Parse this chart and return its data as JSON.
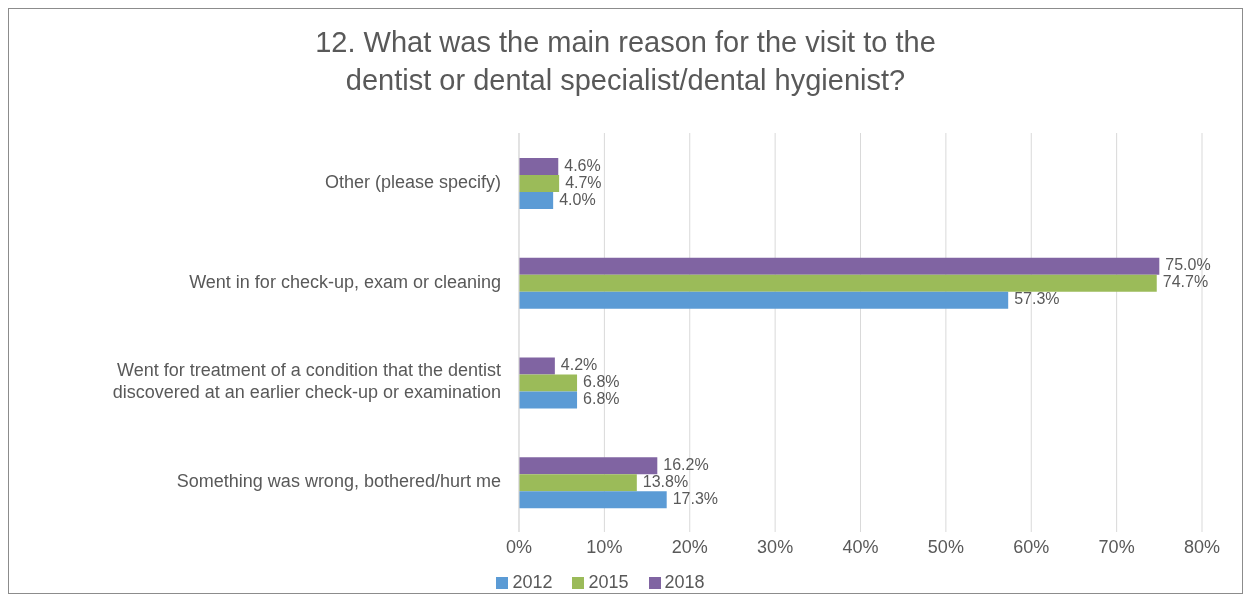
{
  "chart_data": {
    "type": "bar",
    "orientation": "horizontal",
    "title": "12. What was the main reason for the visit to the dentist or dental specialist/dental hygienist?",
    "categories": [
      "Other (please specify)",
      "Went in for check-up, exam or cleaning",
      "Went for treatment of a condition that the dentist discovered at an earlier check-up or examination",
      "Something was wrong, bothered/hurt me"
    ],
    "series": [
      {
        "name": "2018",
        "color": "#8064a2",
        "values": [
          4.6,
          75.0,
          4.2,
          16.2
        ],
        "value_labels": [
          "4.6%",
          "75.0%",
          "4.2%",
          "16.2%"
        ]
      },
      {
        "name": "2015",
        "color": "#9bbb59",
        "values": [
          4.7,
          74.7,
          6.8,
          13.8
        ],
        "value_labels": [
          "4.7%",
          "74.7%",
          "6.8%",
          "13.8%"
        ]
      },
      {
        "name": "2012",
        "color": "#5b9bd5",
        "values": [
          4.0,
          57.3,
          6.8,
          17.3
        ],
        "value_labels": [
          "4.0%",
          "57.3%",
          "6.8%",
          "17.3%"
        ]
      }
    ],
    "xlim": [
      0,
      80
    ],
    "xticks": [
      {
        "value": 0,
        "label": "0%"
      },
      {
        "value": 10,
        "label": "10%"
      },
      {
        "value": 20,
        "label": "20%"
      },
      {
        "value": 30,
        "label": "30%"
      },
      {
        "value": 40,
        "label": "40%"
      },
      {
        "value": 50,
        "label": "50%"
      },
      {
        "value": 60,
        "label": "60%"
      },
      {
        "value": 70,
        "label": "70%"
      },
      {
        "value": 80,
        "label": "80%"
      }
    ],
    "grid": "x",
    "legend": "bottom"
  }
}
